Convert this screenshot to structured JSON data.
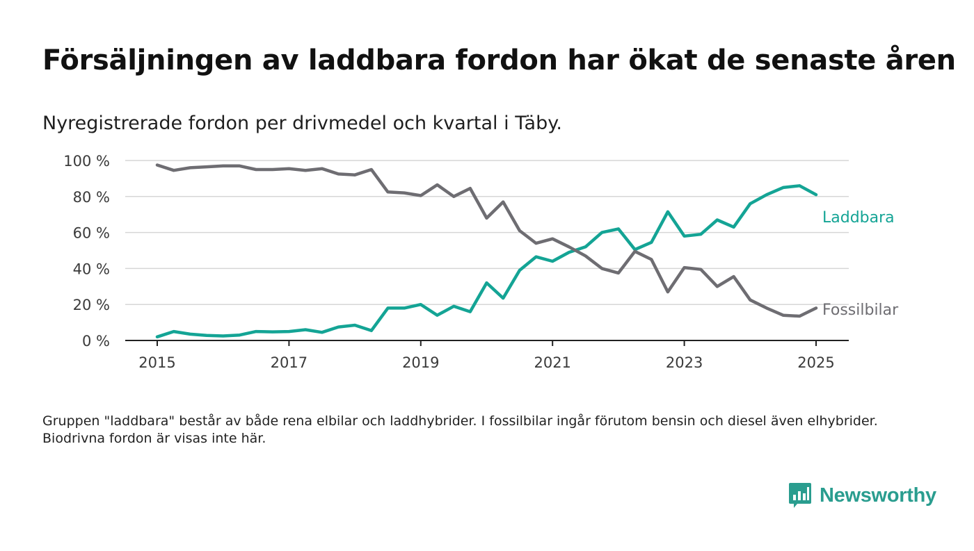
{
  "title": "Försäljningen av laddbara fordon har ökat de senaste åren",
  "subtitle": "Nyregistrerade fordon per drivmedel och kvartal i Täby.",
  "footnote": "Gruppen \"laddbara\" består av både rena elbilar och laddhybrider. I fossilbilar ingår förutom bensin och diesel även elhybrider. Biodrivna fordon är visas inte här.",
  "brand": {
    "name": "Newsworthy",
    "icon": "bar-chart-logo-icon",
    "color": "#2a9d8f"
  },
  "colors": {
    "laddbara": "#14a495",
    "fossil": "#6e6d72",
    "grid": "#d6d6d6",
    "axis": "#222222"
  },
  "chart_data": {
    "type": "line",
    "x_start": 2015,
    "x_step": 0.25,
    "xlim": [
      2014.5,
      2025.5
    ],
    "ylim": [
      0,
      100
    ],
    "x_ticks": [
      2015,
      2017,
      2019,
      2021,
      2023,
      2025
    ],
    "x_tick_labels": [
      "2015",
      "2017",
      "2019",
      "2021",
      "2023",
      "2025"
    ],
    "y_ticks": [
      0,
      20,
      40,
      60,
      80,
      100
    ],
    "y_tick_labels": [
      "0 %",
      "20 %",
      "40 %",
      "60 %",
      "80 %",
      "100 %"
    ],
    "grid": true,
    "series": [
      {
        "name": "Laddbara",
        "values": [
          2,
          5,
          3.5,
          2.8,
          2.5,
          3,
          5,
          4.8,
          5,
          6,
          4.5,
          7.5,
          8.5,
          5.5,
          18,
          18,
          20,
          14,
          19,
          16,
          32,
          23.5,
          39,
          46.5,
          44,
          49,
          52,
          60,
          62,
          50.5,
          54.5,
          71.5,
          58,
          59,
          67,
          63,
          76,
          81,
          85,
          86,
          81
        ]
      },
      {
        "name": "Fossilbilar",
        "values": [
          97.5,
          94.5,
          96,
          96.5,
          97,
          97,
          95,
          95,
          95.5,
          94.5,
          95.5,
          92.5,
          92,
          95,
          82.5,
          82,
          80.5,
          86.5,
          80,
          84.5,
          68,
          77,
          61,
          54,
          56.5,
          52,
          47,
          40,
          37.5,
          49.5,
          45,
          27,
          40.5,
          39.5,
          30,
          35.5,
          22.5,
          18,
          14,
          13.5,
          18
        ]
      }
    ]
  }
}
